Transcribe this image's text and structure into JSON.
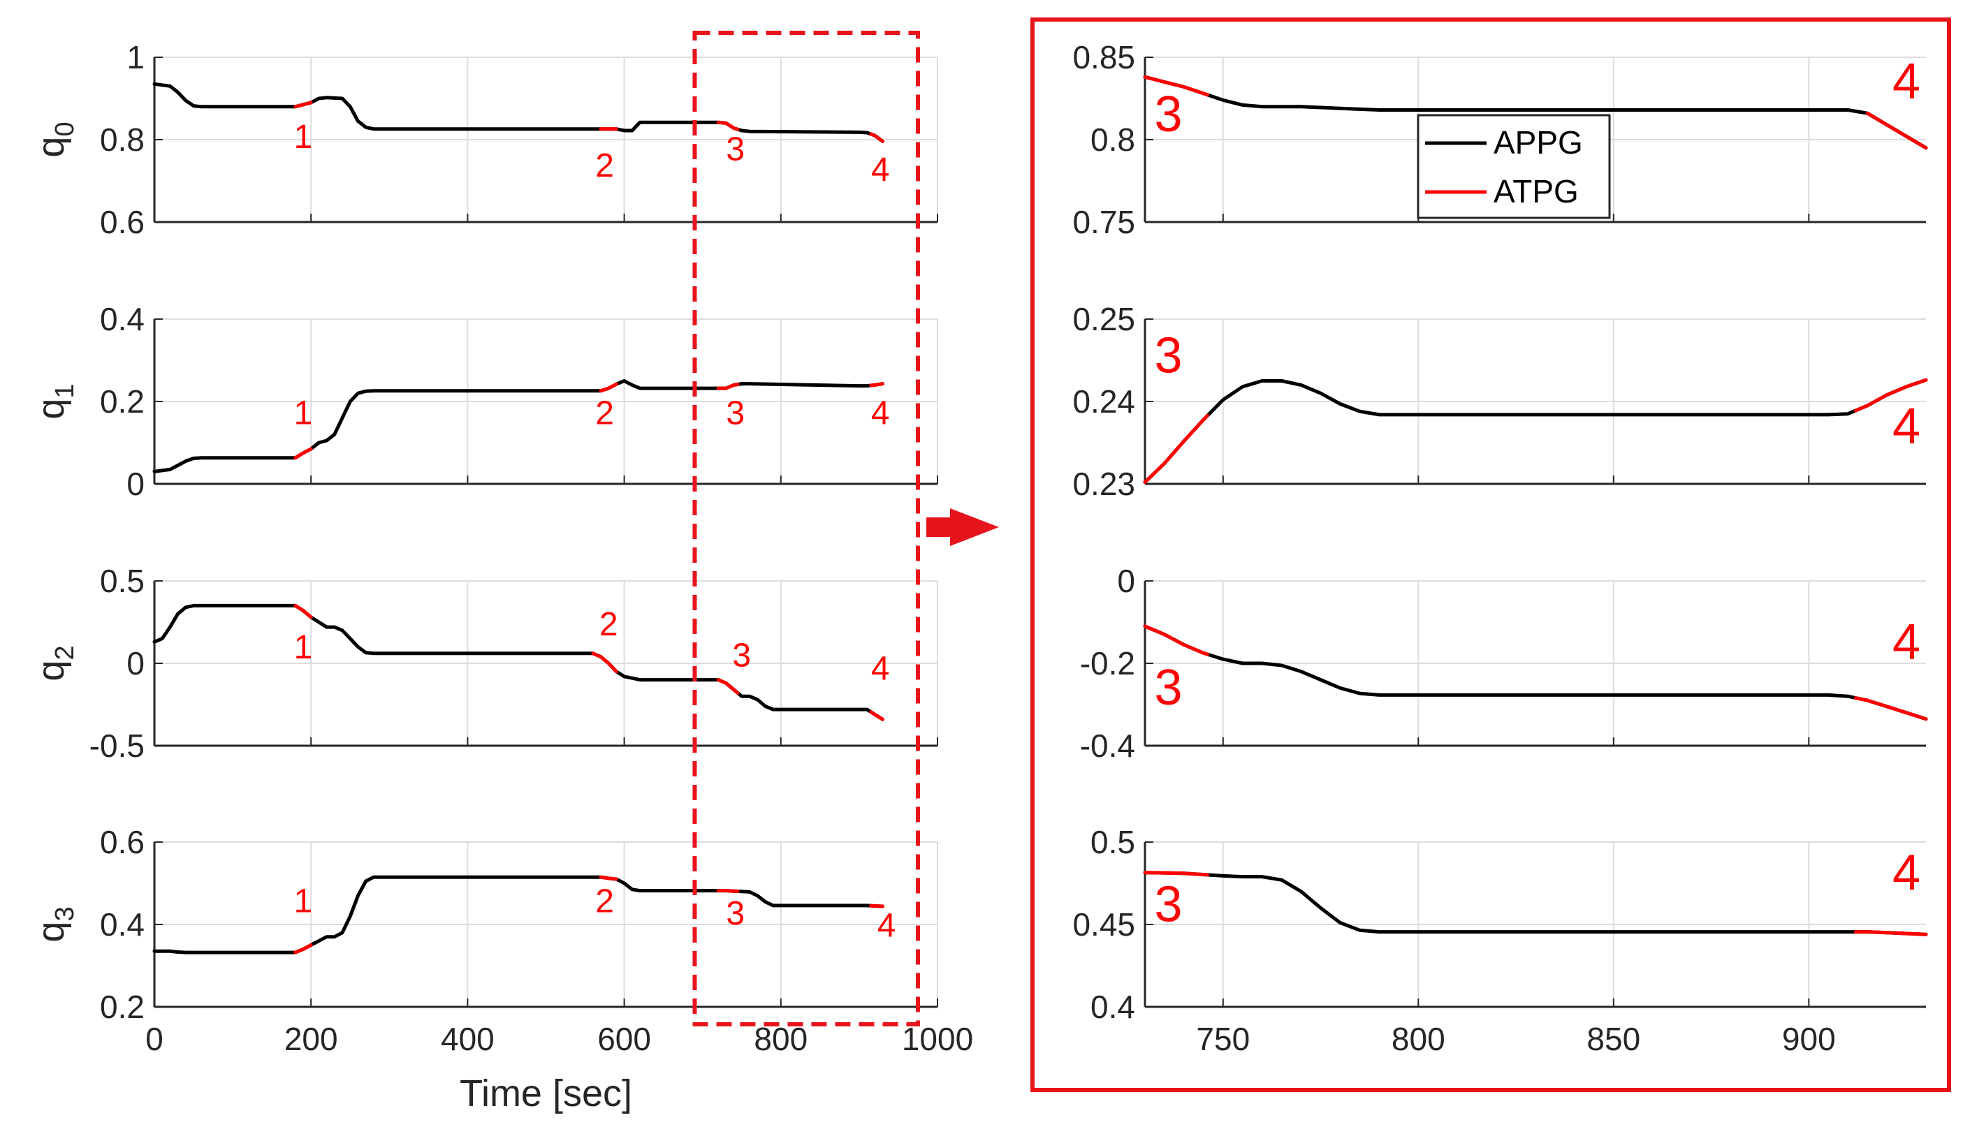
{
  "colors": {
    "appg": "#000000",
    "atpg": "#ff0000",
    "highlight": "#e8141c",
    "grid": "#dcdcdc",
    "axis": "#262626"
  },
  "legend": {
    "entries": [
      "APPG",
      "ATPG"
    ],
    "location": "upper-middle of zoomed q0 panel"
  },
  "chart_data": [
    {
      "type": "line",
      "panel": "left",
      "title": "",
      "xlabel": "Time [sec]",
      "xlim": [
        0,
        1000
      ],
      "xticks": [
        0,
        200,
        400,
        600,
        800,
        1000
      ],
      "subplots": [
        {
          "ylabel": "q",
          "ylabel_sub": "0",
          "ylim": [
            0.6,
            1.0
          ],
          "yticks": [
            0.6,
            0.8,
            1.0
          ],
          "ytick_labels": [
            "0.6",
            "0.8",
            "1"
          ],
          "series": [
            {
              "name": "APPG",
              "x": [
                0,
                20,
                30,
                40,
                50,
                60,
                180,
                200,
                210,
                220,
                240,
                250,
                260,
                270,
                280,
                570,
                590,
                600,
                610,
                620,
                720,
                730,
                740,
                750,
                760,
                900,
                910,
                920,
                930
              ],
              "y": [
                0.935,
                0.93,
                0.915,
                0.895,
                0.882,
                0.88,
                0.88,
                0.89,
                0.9,
                0.902,
                0.9,
                0.88,
                0.845,
                0.83,
                0.826,
                0.826,
                0.826,
                0.822,
                0.822,
                0.842,
                0.842,
                0.84,
                0.828,
                0.822,
                0.82,
                0.818,
                0.817,
                0.81,
                0.796
              ]
            }
          ],
          "atpg_segments": [
            [
              180,
              200
            ],
            [
              570,
              590
            ],
            [
              720,
              745
            ],
            [
              915,
              930
            ]
          ],
          "annotations": [
            {
              "text": "1",
              "x": 190,
              "y": 0.78
            },
            {
              "text": "2",
              "x": 575,
              "y": 0.71
            },
            {
              "text": "3",
              "x": 742,
              "y": 0.75
            },
            {
              "text": "4",
              "x": 927,
              "y": 0.7
            }
          ]
        },
        {
          "ylabel": "q",
          "ylabel_sub": "1",
          "ylim": [
            0,
            0.4
          ],
          "yticks": [
            0,
            0.2,
            0.4
          ],
          "ytick_labels": [
            "0",
            "0.2",
            "0.4"
          ],
          "series": [
            {
              "name": "APPG",
              "x": [
                0,
                20,
                30,
                40,
                50,
                60,
                180,
                190,
                200,
                210,
                220,
                230,
                240,
                250,
                260,
                270,
                280,
                570,
                580,
                590,
                600,
                610,
                620,
                720,
                730,
                740,
                750,
                760,
                900,
                910,
                920,
                930
              ],
              "y": [
                0.03,
                0.035,
                0.045,
                0.055,
                0.062,
                0.063,
                0.063,
                0.075,
                0.085,
                0.1,
                0.105,
                0.12,
                0.16,
                0.2,
                0.22,
                0.225,
                0.226,
                0.226,
                0.232,
                0.242,
                0.25,
                0.24,
                0.232,
                0.232,
                0.232,
                0.24,
                0.243,
                0.243,
                0.238,
                0.238,
                0.24,
                0.243
              ]
            }
          ],
          "atpg_segments": [
            [
              180,
              200
            ],
            [
              570,
              590
            ],
            [
              720,
              745
            ],
            [
              915,
              930
            ]
          ],
          "annotations": [
            {
              "text": "1",
              "x": 190,
              "y": 0.145
            },
            {
              "text": "2",
              "x": 575,
              "y": 0.145
            },
            {
              "text": "3",
              "x": 742,
              "y": 0.145
            },
            {
              "text": "4",
              "x": 927,
              "y": 0.145
            }
          ]
        },
        {
          "ylabel": "q",
          "ylabel_sub": "2",
          "ylim": [
            -0.5,
            0.5
          ],
          "yticks": [
            -0.5,
            0,
            0.5
          ],
          "ytick_labels": [
            "-0.5",
            "0",
            "0.5"
          ],
          "series": [
            {
              "name": "APPG",
              "x": [
                0,
                10,
                20,
                30,
                40,
                50,
                60,
                180,
                190,
                200,
                210,
                220,
                230,
                240,
                250,
                260,
                270,
                280,
                560,
                570,
                580,
                590,
                600,
                610,
                620,
                720,
                730,
                740,
                750,
                760,
                770,
                780,
                790,
                800,
                900,
                910,
                920,
                930
              ],
              "y": [
                0.13,
                0.15,
                0.22,
                0.3,
                0.34,
                0.35,
                0.35,
                0.35,
                0.32,
                0.28,
                0.25,
                0.22,
                0.22,
                0.2,
                0.15,
                0.1,
                0.065,
                0.06,
                0.06,
                0.04,
                0.0,
                -0.05,
                -0.08,
                -0.09,
                -0.1,
                -0.1,
                -0.12,
                -0.16,
                -0.2,
                -0.2,
                -0.22,
                -0.26,
                -0.28,
                -0.28,
                -0.28,
                -0.28,
                -0.31,
                -0.34
              ]
            }
          ],
          "atpg_segments": [
            [
              180,
              200
            ],
            [
              560,
              590
            ],
            [
              720,
              745
            ],
            [
              915,
              930
            ]
          ],
          "annotations": [
            {
              "text": "1",
              "x": 190,
              "y": 0.03
            },
            {
              "text": "2",
              "x": 580,
              "y": 0.17
            },
            {
              "text": "3",
              "x": 750,
              "y": -0.02
            },
            {
              "text": "4",
              "x": 927,
              "y": -0.1
            }
          ]
        },
        {
          "ylabel": "q",
          "ylabel_sub": "3",
          "ylim": [
            0.2,
            0.6
          ],
          "yticks": [
            0.2,
            0.4,
            0.6
          ],
          "ytick_labels": [
            "0.2",
            "0.4",
            "0.6"
          ],
          "series": [
            {
              "name": "APPG",
              "x": [
                0,
                20,
                30,
                40,
                50,
                60,
                180,
                190,
                200,
                210,
                220,
                230,
                240,
                250,
                260,
                270,
                280,
                570,
                580,
                590,
                600,
                610,
                620,
                720,
                730,
                740,
                750,
                760,
                770,
                780,
                790,
                800,
                900,
                910,
                920,
                930
              ],
              "y": [
                0.335,
                0.335,
                0.333,
                0.332,
                0.332,
                0.332,
                0.332,
                0.34,
                0.35,
                0.36,
                0.37,
                0.37,
                0.38,
                0.42,
                0.47,
                0.505,
                0.515,
                0.515,
                0.512,
                0.51,
                0.5,
                0.485,
                0.482,
                0.482,
                0.482,
                0.481,
                0.48,
                0.479,
                0.47,
                0.455,
                0.446,
                0.446,
                0.446,
                0.446,
                0.445,
                0.444
              ]
            }
          ],
          "atpg_segments": [
            [
              180,
              200
            ],
            [
              570,
              590
            ],
            [
              720,
              745
            ],
            [
              915,
              930
            ]
          ],
          "annotations": [
            {
              "text": "1",
              "x": 190,
              "y": 0.43
            },
            {
              "text": "2",
              "x": 575,
              "y": 0.43
            },
            {
              "text": "3",
              "x": 742,
              "y": 0.4
            },
            {
              "text": "4",
              "x": 935,
              "y": 0.37
            }
          ]
        }
      ],
      "highlight_box": {
        "x_from": 690,
        "x_to": 975,
        "style": "dashed"
      }
    },
    {
      "type": "line",
      "panel": "right-zoom",
      "title": "",
      "xlabel": "",
      "xlim": [
        730,
        930
      ],
      "xticks": [
        750,
        800,
        850,
        900
      ],
      "subplots": [
        {
          "ylim": [
            0.75,
            0.85
          ],
          "yticks": [
            0.75,
            0.8,
            0.85
          ],
          "ytick_labels": [
            "0.75",
            "0.8",
            "0.85"
          ],
          "series": [
            {
              "name": "APPG",
              "x": [
                730,
                735,
                740,
                745,
                750,
                755,
                760,
                770,
                780,
                790,
                800,
                850,
                900,
                905,
                910,
                915,
                920,
                925,
                930
              ],
              "y": [
                0.838,
                0.835,
                0.832,
                0.828,
                0.824,
                0.821,
                0.82,
                0.82,
                0.819,
                0.818,
                0.818,
                0.818,
                0.818,
                0.818,
                0.818,
                0.816,
                0.809,
                0.802,
                0.795
              ]
            }
          ],
          "atpg_segments": [
            [
              730,
              746
            ],
            [
              915,
              930
            ]
          ],
          "annotations": [
            {
              "text": "3",
              "x": 736,
              "y": 0.805
            },
            {
              "text": "4",
              "x": 925,
              "y": 0.825
            }
          ]
        },
        {
          "ylim": [
            0.23,
            0.25
          ],
          "yticks": [
            0.23,
            0.24,
            0.25
          ],
          "ytick_labels": [
            "0.23",
            "0.24",
            "0.25"
          ],
          "series": [
            {
              "name": "APPG",
              "x": [
                730,
                735,
                740,
                745,
                750,
                755,
                760,
                765,
                770,
                775,
                780,
                785,
                790,
                800,
                850,
                900,
                905,
                910,
                915,
                920,
                925,
                930
              ],
              "y": [
                0.2302,
                0.2325,
                0.2352,
                0.2378,
                0.2402,
                0.2418,
                0.2425,
                0.2425,
                0.242,
                0.241,
                0.2397,
                0.2388,
                0.2384,
                0.2384,
                0.2384,
                0.2384,
                0.2384,
                0.2385,
                0.2395,
                0.2408,
                0.2418,
                0.2426
              ]
            }
          ],
          "atpg_segments": [
            [
              730,
              746
            ],
            [
              912,
              930
            ]
          ],
          "annotations": [
            {
              "text": "3",
              "x": 736,
              "y": 0.2435
            },
            {
              "text": "4",
              "x": 925,
              "y": 0.2349
            }
          ]
        },
        {
          "ylim": [
            -0.4,
            0
          ],
          "yticks": [
            -0.4,
            -0.2,
            0
          ],
          "ytick_labels": [
            "-0.4",
            "-0.2",
            "0"
          ],
          "series": [
            {
              "name": "APPG",
              "x": [
                730,
                735,
                740,
                745,
                750,
                755,
                760,
                765,
                770,
                775,
                780,
                785,
                790,
                800,
                850,
                900,
                905,
                910,
                915,
                920,
                925,
                930
              ],
              "y": [
                -0.11,
                -0.13,
                -0.155,
                -0.175,
                -0.19,
                -0.2,
                -0.2,
                -0.205,
                -0.22,
                -0.24,
                -0.26,
                -0.273,
                -0.277,
                -0.277,
                -0.277,
                -0.277,
                -0.277,
                -0.28,
                -0.29,
                -0.305,
                -0.32,
                -0.335
              ]
            }
          ],
          "atpg_segments": [
            [
              730,
              746
            ],
            [
              912,
              930
            ]
          ],
          "annotations": [
            {
              "text": "3",
              "x": 736,
              "y": -0.3
            },
            {
              "text": "4",
              "x": 925,
              "y": -0.19
            }
          ]
        },
        {
          "ylim": [
            0.4,
            0.5
          ],
          "yticks": [
            0.4,
            0.45,
            0.5
          ],
          "ytick_labels": [
            "0.4",
            "0.45",
            "0.5"
          ],
          "series": [
            {
              "name": "APPG",
              "x": [
                730,
                740,
                750,
                755,
                760,
                765,
                770,
                775,
                780,
                785,
                790,
                800,
                850,
                900,
                910,
                915,
                920,
                925,
                930
              ],
              "y": [
                0.4815,
                0.481,
                0.4795,
                0.479,
                0.479,
                0.477,
                0.47,
                0.46,
                0.451,
                0.4465,
                0.4455,
                0.4455,
                0.4455,
                0.4455,
                0.4455,
                0.4455,
                0.445,
                0.4445,
                0.444
              ]
            }
          ],
          "atpg_segments": [
            [
              730,
              746
            ],
            [
              912,
              930
            ]
          ],
          "annotations": [
            {
              "text": "3",
              "x": 736,
              "y": 0.452
            },
            {
              "text": "4",
              "x": 925,
              "y": 0.471
            }
          ]
        }
      ],
      "legend_entries": [
        "APPG",
        "ATPG"
      ]
    }
  ]
}
